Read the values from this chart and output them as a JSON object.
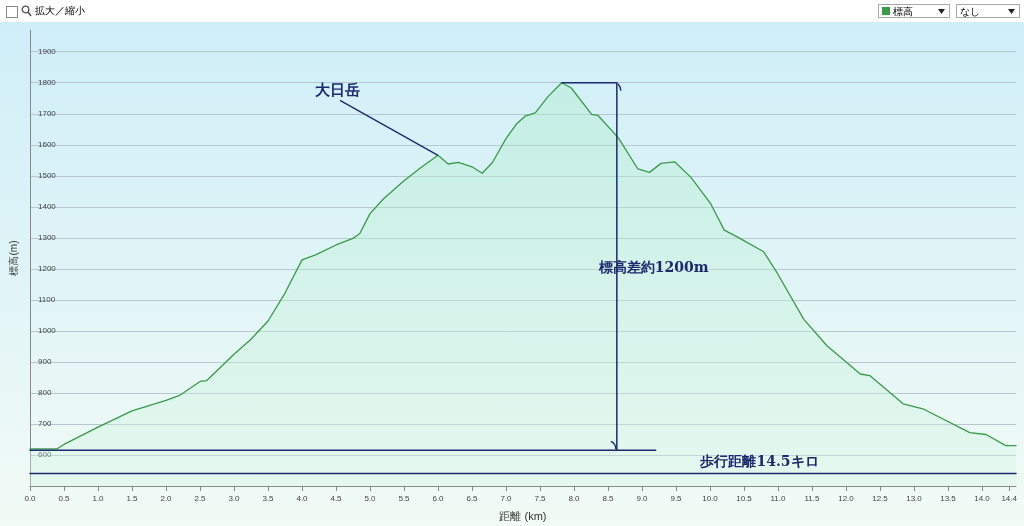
{
  "chart_data": {
    "type": "area",
    "xlabel": "距離 (km)",
    "ylabel": "標高(m)",
    "x": [
      0,
      0.4,
      0.5,
      1.0,
      1.5,
      2.0,
      2.2,
      2.5,
      2.6,
      3.0,
      3.25,
      3.5,
      3.75,
      4.0,
      4.2,
      4.5,
      4.75,
      4.85,
      5.0,
      5.2,
      5.5,
      5.75,
      6.0,
      6.15,
      6.3,
      6.5,
      6.65,
      6.8,
      7.0,
      7.15,
      7.28,
      7.43,
      7.62,
      7.82,
      7.96,
      8.26,
      8.35,
      8.65,
      8.94,
      9.11,
      9.28,
      9.48,
      9.72,
      10.01,
      10.21,
      10.4,
      10.79,
      10.99,
      11.38,
      11.72,
      12.21,
      12.35,
      12.84,
      13.13,
      13.82,
      14.06,
      14.35,
      14.5
    ],
    "series": [
      {
        "name": "標高",
        "color": "#3a9a4a",
        "values": [
          620,
          620,
          634,
          690,
          742,
          776,
          792,
          837,
          840,
          925,
          973,
          1032,
          1122,
          1229,
          1245,
          1277,
          1298,
          1314,
          1378,
          1426,
          1484,
          1527,
          1566,
          1538,
          1543,
          1529,
          1508,
          1543,
          1620,
          1666,
          1692,
          1703,
          1756,
          1800,
          1783,
          1698,
          1695,
          1623,
          1522,
          1511,
          1540,
          1545,
          1495,
          1410,
          1325,
          1303,
          1255,
          1186,
          1037,
          952,
          861,
          856,
          765,
          749,
          672,
          666,
          630,
          630
        ]
      },
      {
        "type": "line",
        "color": "#1a2a6c",
        "x": [
          7.82,
          8.63,
          8.63
        ],
        "values": [
          1800,
          1800,
          615
        ]
      },
      {
        "type": "line",
        "color": "#1a2a6c",
        "x": [
          0,
          9.2
        ],
        "values": [
          615,
          615
        ]
      },
      {
        "type": "line",
        "color": "#1a2a6c",
        "x": [
          0,
          14.5
        ],
        "values": [
          540,
          540
        ]
      }
    ],
    "xlim": [
      0,
      14.5
    ],
    "xticks": [
      {
        "value": 0,
        "label": "0.0"
      },
      0.5,
      {
        "value": 1,
        "label": "1.0"
      },
      1.5,
      {
        "value": 2,
        "label": "2.0"
      },
      2.5,
      {
        "value": 3,
        "label": "3.0"
      },
      3.5,
      {
        "value": 4,
        "label": "4.0"
      },
      4.5,
      {
        "value": 5,
        "label": "5.0"
      },
      5.5,
      {
        "value": 6,
        "label": "6.0"
      },
      6.5,
      {
        "value": 7,
        "label": "7.0"
      },
      7.5,
      {
        "value": 8,
        "label": "8.0"
      },
      8.5,
      {
        "value": 9,
        "label": "9.0"
      },
      9.5,
      {
        "value": 10,
        "label": "10.0"
      },
      10.5,
      {
        "value": 11,
        "label": "11.0"
      },
      11.5,
      {
        "value": 12,
        "label": "12.0"
      },
      12.5,
      {
        "value": 13,
        "label": "13.0"
      },
      13.5,
      {
        "value": 14,
        "label": "14.0"
      },
      14.4
    ],
    "ylim": [
      500,
      1970
    ],
    "yticks": [
      600,
      700,
      800,
      900,
      1000,
      1100,
      1200,
      1300,
      1400,
      1500,
      1600,
      1700,
      1800,
      1900
    ],
    "grid": "y",
    "legend": "top right",
    "marker": "none",
    "line_style": "solid",
    "annotations": [
      {
        "text": "大日岳",
        "x": 6.0,
        "y": 1566
      },
      "標高差約1200m",
      "歩行距離14.5キロ",
      "拡大／縮小",
      "なし"
    ]
  }
}
